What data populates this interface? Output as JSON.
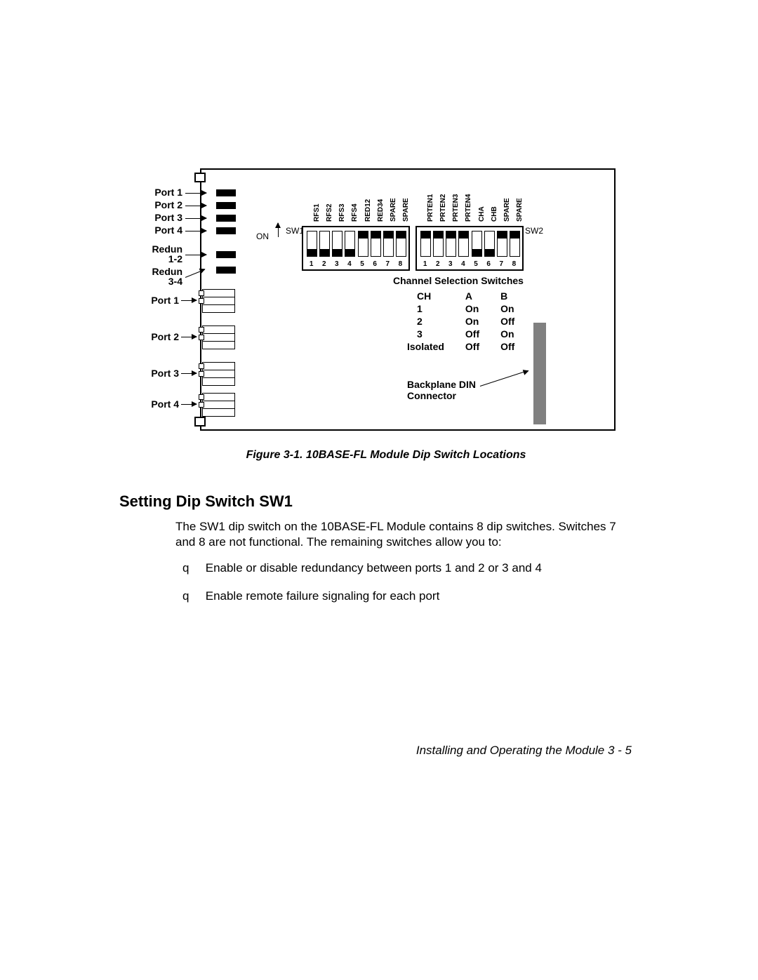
{
  "figure": {
    "caption": "Figure 3-1.  10BASE-FL Module Dip Switch Locations",
    "left_labels": [
      "Port 1",
      "Port 2",
      "Port 3",
      "Port 4",
      "Redun 1-2",
      "Redun 3-4"
    ],
    "port_conn_labels": [
      "Port 1",
      "Port 2",
      "Port 3",
      "Port 4"
    ],
    "on_label": "ON",
    "sw1_label": "SW1",
    "sw2_label": "SW2",
    "sw1_top_labels": [
      "RFS1",
      "RFS2",
      "RFS3",
      "RFS4",
      "RED12",
      "RED34",
      "SPARE",
      "SPARE"
    ],
    "sw2_top_labels": [
      "PRTEN1",
      "PRTEN2",
      "PRTEN3",
      "PRTEN4",
      "CHA",
      "CHB",
      "SPARE",
      "SPARE"
    ],
    "sw_numbers": [
      "1",
      "2",
      "3",
      "4",
      "5",
      "6",
      "7",
      "8"
    ],
    "sw1_positions": [
      "down",
      "down",
      "down",
      "down",
      "up",
      "up",
      "up",
      "up"
    ],
    "sw2_positions": [
      "up",
      "up",
      "up",
      "up",
      "down",
      "down",
      "up",
      "up"
    ],
    "ch_header": "Channel Selection Switches",
    "ch_table": {
      "cols": [
        "CH",
        "A",
        "B"
      ],
      "rows": [
        [
          "1",
          "On",
          "On"
        ],
        [
          "2",
          "On",
          "Off"
        ],
        [
          "3",
          "Off",
          "On"
        ],
        [
          "Isolated",
          "Off",
          "Off"
        ]
      ]
    },
    "backplane_label_l1": "Backplane DIN",
    "backplane_label_l2": "Connector",
    "colors": {
      "line": "#000000",
      "bg": "#ffffff",
      "backplane": "#808080"
    }
  },
  "heading": "Setting Dip Switch SW1",
  "para": "The SW1 dip switch on the 10BASE-FL Module contains 8 dip switches. Switches 7 and 8 are not functional. The remaining switches allow you to:",
  "bullets": [
    "Enable or disable redundancy between ports 1 and 2 or 3 and 4",
    "Enable remote failure signaling for each port"
  ],
  "bullet_marker": "q",
  "footer": "Installing and Operating the Module  3 - 5"
}
